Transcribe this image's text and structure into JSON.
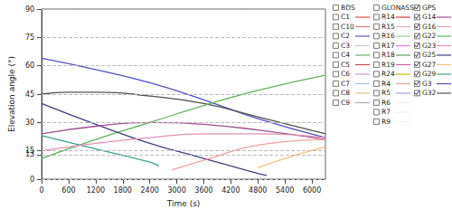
{
  "chart_data": {
    "type": "line",
    "x_label": "Time (s)",
    "y_label": "Elevation angle (°)",
    "xlim": [
      0,
      6300
    ],
    "xticks": [
      0,
      600,
      1200,
      1800,
      2400,
      3000,
      3600,
      4200,
      4800,
      5400,
      6000
    ],
    "ylim": [
      0,
      90
    ],
    "yticks": [
      0,
      13,
      15,
      30,
      45,
      60,
      75,
      90
    ],
    "grid": true,
    "legend_columns": [
      {
        "name": "BDS",
        "checked": false,
        "items": [
          {
            "name": "C1",
            "color": "#e05050",
            "checked": false
          },
          {
            "name": "C10",
            "color": "#e07878",
            "checked": false
          },
          {
            "name": "C2",
            "color": "#5a5ad0",
            "checked": false
          },
          {
            "name": "C3",
            "color": "#c8c8c8",
            "checked": false
          },
          {
            "name": "C4",
            "color": "#6ab06a",
            "checked": false
          },
          {
            "name": "C5",
            "color": "#c05050",
            "checked": false
          },
          {
            "name": "C6",
            "color": "#d0a0d0",
            "checked": false
          },
          {
            "name": "C7",
            "color": "#a0c0e0",
            "checked": false
          },
          {
            "name": "C8",
            "color": "#e0c080",
            "checked": false
          },
          {
            "name": "C9",
            "color": "#b0b0b0",
            "checked": false
          }
        ]
      },
      {
        "name": "GLONASS",
        "checked": false,
        "items": [
          {
            "name": "R14",
            "color": "#d04040",
            "checked": false
          },
          {
            "name": "R15",
            "color": "#e0b0b0",
            "checked": false
          },
          {
            "name": "R16",
            "color": "#a0d0a0",
            "checked": false
          },
          {
            "name": "R17",
            "color": "#e080e0",
            "checked": false
          },
          {
            "name": "R18",
            "color": "#60a060",
            "checked": false
          },
          {
            "name": "R19",
            "color": "#d060a0",
            "checked": false
          },
          {
            "name": "R24",
            "color": "#c0c000",
            "checked": false
          },
          {
            "name": "R4",
            "color": "#e0a0a0",
            "checked": false
          },
          {
            "name": "R5",
            "color": "#a0a0e0",
            "checked": false
          },
          {
            "name": "R6",
            "color": "#f0f0f0",
            "checked": false
          },
          {
            "name": "R7",
            "color": "#f0f0f0",
            "checked": false
          },
          {
            "name": "R9",
            "color": "#f0f0f0",
            "checked": false
          }
        ]
      },
      {
        "name": "GPS",
        "checked": true,
        "items": [
          {
            "name": "G14",
            "color": "#a05090",
            "checked": true
          },
          {
            "name": "G16",
            "color": "#f0a0a0",
            "checked": true
          },
          {
            "name": "G22",
            "color": "#60b060",
            "checked": true
          },
          {
            "name": "G23",
            "color": "#e090b0",
            "checked": true
          },
          {
            "name": "G25",
            "color": "#404080",
            "checked": true
          },
          {
            "name": "G27",
            "color": "#f0c080",
            "checked": true
          },
          {
            "name": "G29",
            "color": "#40a090",
            "checked": true
          },
          {
            "name": "G3",
            "color": "#5050c0",
            "checked": true
          },
          {
            "name": "G32",
            "color": "#505050",
            "checked": true
          }
        ]
      }
    ],
    "series": [
      {
        "name": "G3",
        "color": "#5050c0",
        "x": [
          0,
          1200,
          2400,
          3600,
          4800,
          6300
        ],
        "values": [
          64,
          58,
          51,
          42,
          32,
          22
        ]
      },
      {
        "name": "G32",
        "color": "#505050",
        "x": [
          0,
          600,
          1200,
          2400,
          3600,
          4800,
          6300
        ],
        "values": [
          45,
          46,
          46,
          44,
          40,
          33,
          24
        ]
      },
      {
        "name": "G22",
        "color": "#60b060",
        "x": [
          0,
          1200,
          2400,
          3600,
          4800,
          6300
        ],
        "values": [
          11,
          21,
          30,
          39,
          47,
          55
        ]
      },
      {
        "name": "G25",
        "color": "#404080",
        "x": [
          0,
          1200,
          2400,
          3600,
          4800,
          5000
        ],
        "values": [
          40,
          29,
          19,
          11,
          3,
          2
        ]
      },
      {
        "name": "G29",
        "color": "#40a090",
        "x": [
          0,
          1200,
          2400,
          2600
        ],
        "values": [
          23,
          16,
          9,
          7
        ]
      },
      {
        "name": "G14",
        "color": "#a05090",
        "x": [
          0,
          1200,
          2400,
          3600,
          4800,
          6300
        ],
        "values": [
          24,
          28,
          30,
          29,
          26,
          21
        ]
      },
      {
        "name": "G23",
        "color": "#e090b0",
        "x": [
          0,
          1200,
          2400,
          3600,
          4800,
          6300
        ],
        "values": [
          15,
          19,
          22,
          24,
          24,
          22
        ]
      },
      {
        "name": "G16",
        "color": "#f0a0a0",
        "x": [
          2900,
          3600,
          4800,
          6300
        ],
        "values": [
          5,
          10,
          18,
          21
        ]
      },
      {
        "name": "G27",
        "color": "#f0c080",
        "x": [
          4800,
          5400,
          6300
        ],
        "values": [
          6,
          11,
          17
        ]
      }
    ]
  }
}
